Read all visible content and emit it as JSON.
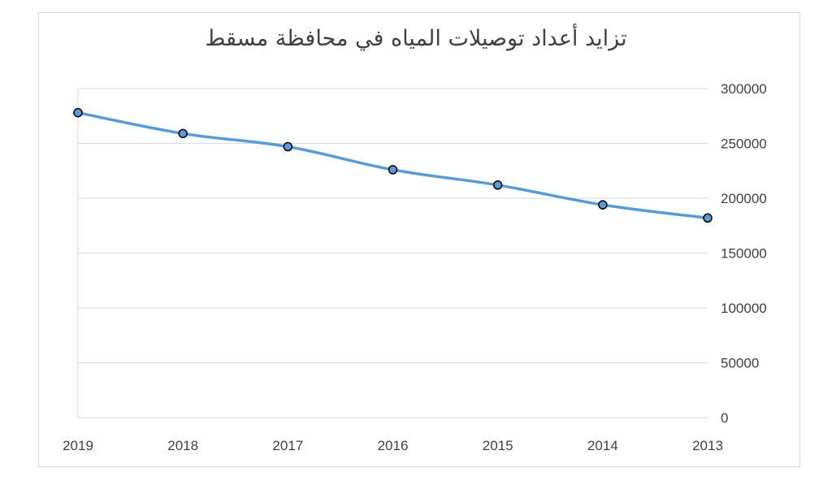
{
  "chart_data": {
    "type": "line",
    "title": "تزايد أعداد توصيلات المياه في محافظة مسقط",
    "xlabel": "",
    "ylabel": "",
    "categories": [
      "2019",
      "2018",
      "2017",
      "2016",
      "2015",
      "2014",
      "2013"
    ],
    "series": [
      {
        "values": [
          278000,
          259000,
          247000,
          226000,
          212000,
          194000,
          182000
        ]
      }
    ],
    "ylim": [
      0,
      300000
    ],
    "yticks": [
      "0",
      "50000",
      "100000",
      "150000",
      "200000",
      "250000",
      "300000"
    ],
    "yaxis_side": "right",
    "grid": true,
    "legend": "none",
    "line_color": "#5b9bd5",
    "marker_fill": "#5b9bd5",
    "marker_edge": "#000000",
    "grid_color": "#d9d9d9"
  }
}
